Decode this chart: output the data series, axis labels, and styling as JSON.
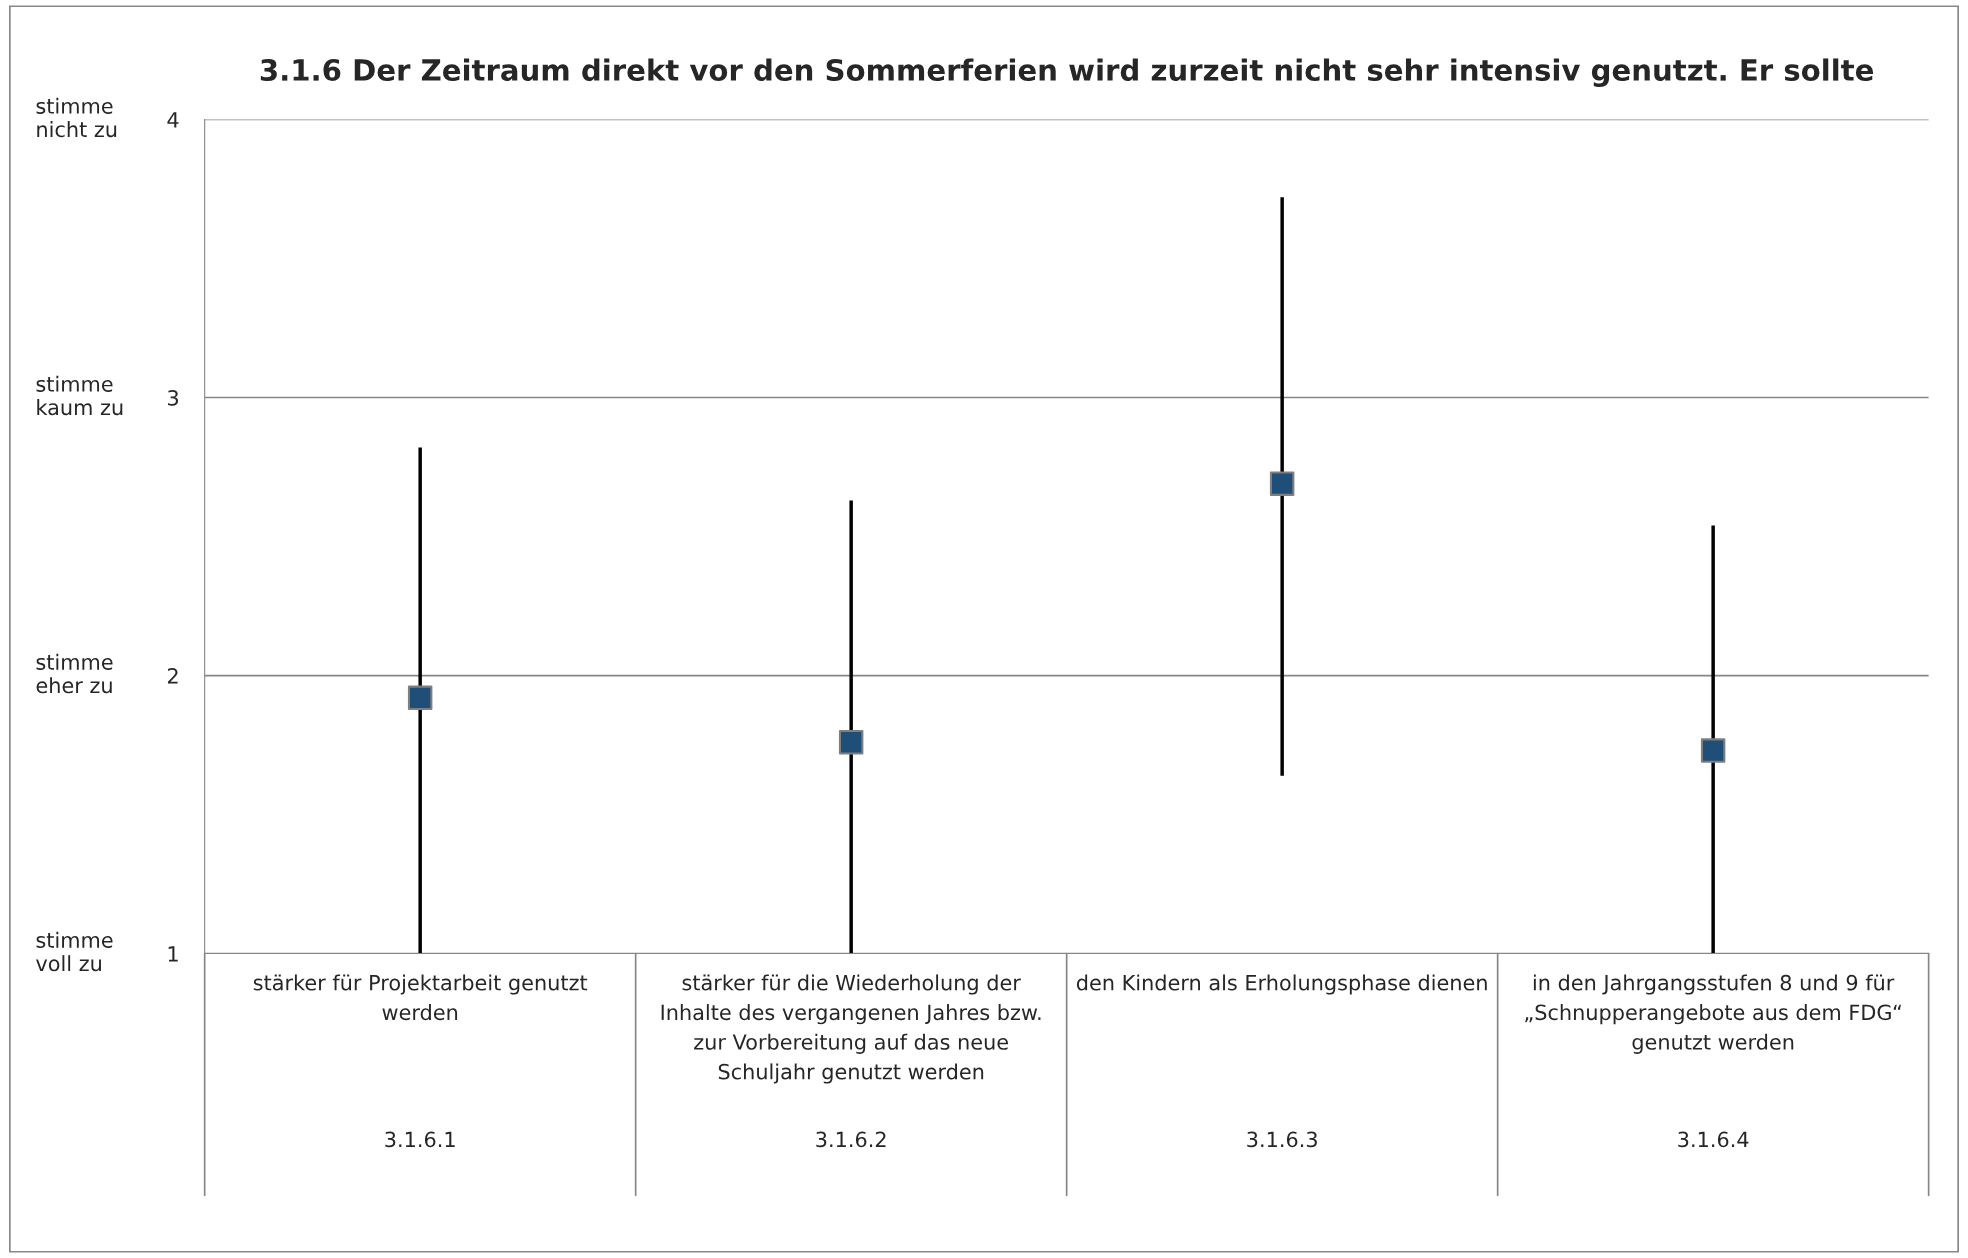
{
  "chart_data": {
    "type": "scatter",
    "title": "3.1.6 Der Zeitraum direkt vor den Sommerferien wird zurzeit nicht sehr intensiv genutzt. Er sollte",
    "categories": [
      "3.1.6.1",
      "3.1.6.2",
      "3.1.6.3",
      "3.1.6.4"
    ],
    "series": [
      {
        "color": "#1f4e79",
        "values": [
          1.92,
          1.76,
          2.69,
          1.73
        ],
        "errors": [
          [
            1.0,
            2.82
          ],
          [
            1.0,
            2.63
          ],
          [
            1.64,
            3.72
          ],
          [
            1.0,
            2.54
          ]
        ]
      }
    ],
    "ylim": [
      1,
      4
    ],
    "yticks": [
      1,
      2,
      3,
      4
    ],
    "grid": "y",
    "marker": "square",
    "annotations": [
      "stimme\nvoll zu",
      "stimme\neher zu",
      "stimme\nkaum zu",
      "stimme\nnicht zu",
      "stärker für Projektarbeit genutzt\nwerden",
      "stärker für die Wiederholung der\nInhalte des vergangenen Jahres bzw.\nzur Vorbereitung auf das neue\nSchuljahr genutzt werden",
      "den Kindern als Erholungsphase dienen",
      "in den Jahrgangsstufen 8 und 9 für\n„Schnupperangebote aus dem FDG“\ngenutzt werden"
    ]
  }
}
